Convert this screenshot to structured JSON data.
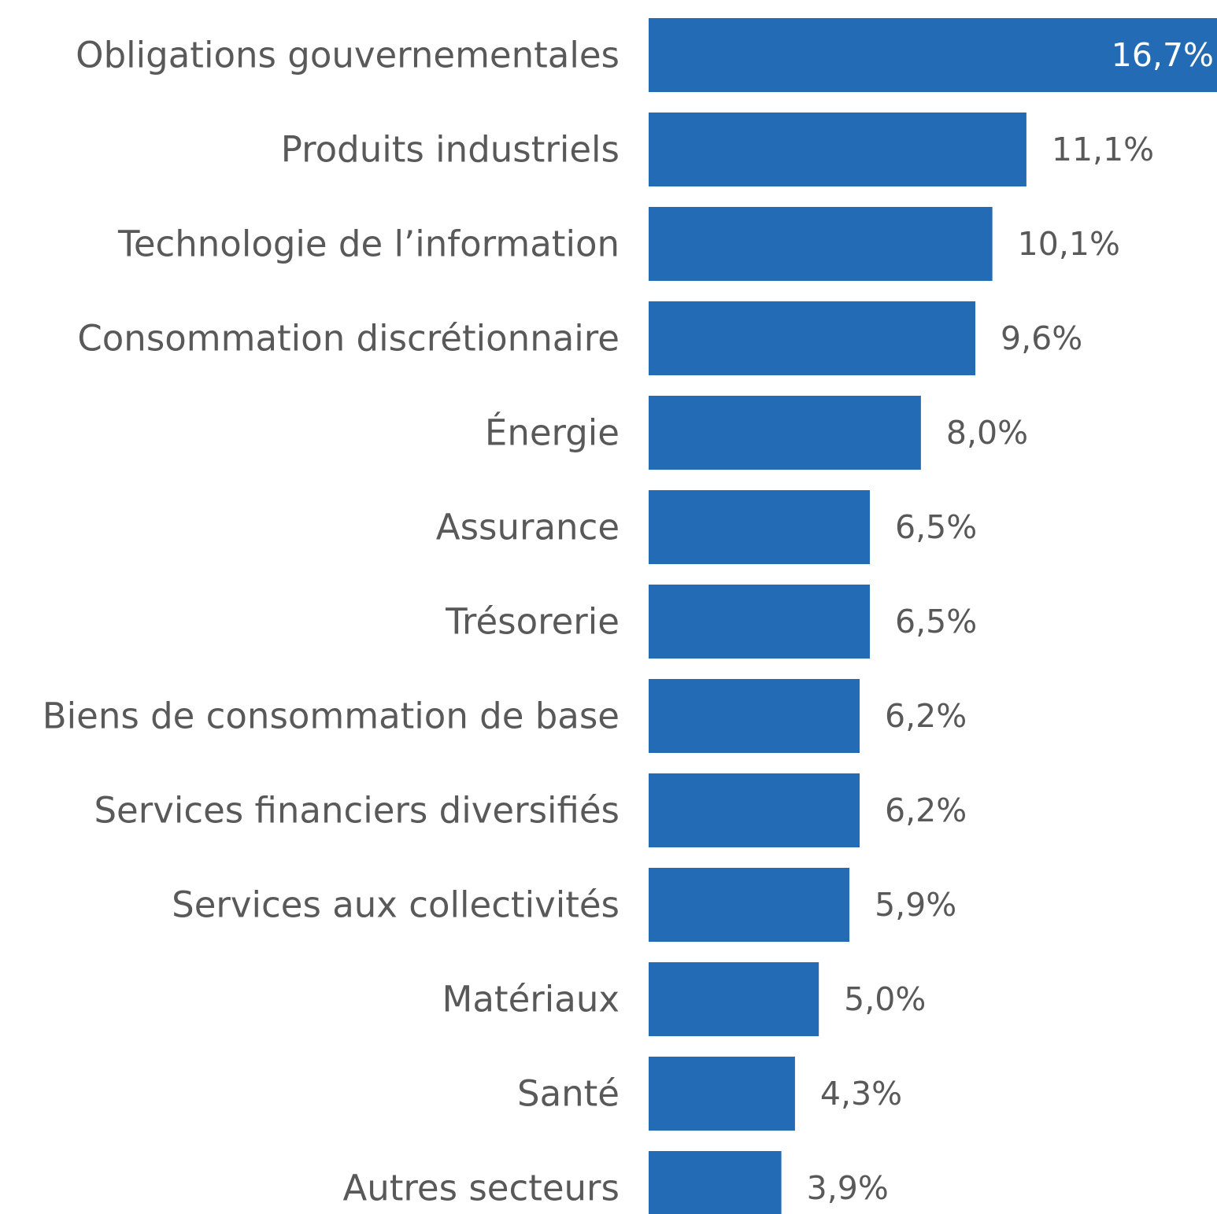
{
  "chart_data": {
    "type": "bar",
    "orientation": "horizontal",
    "categories": [
      "Obligations gouvernementales",
      "Produits industriels",
      "Technologie de l’information",
      "Consommation discrétionnaire",
      "Énergie",
      "Assurance",
      "Trésorerie",
      "Biens de consommation de base",
      "Services financiers diversifiés",
      "Services aux collectivités",
      "Matériaux",
      "Santé",
      "Autres secteurs"
    ],
    "values": [
      16.7,
      11.1,
      10.1,
      9.6,
      8.0,
      6.5,
      6.5,
      6.2,
      6.2,
      5.9,
      5.0,
      4.3,
      3.9
    ],
    "value_labels": [
      "16,7%",
      "11,1%",
      "10,1%",
      "9,6%",
      "8,0%",
      "6,5%",
      "6,5%",
      "6,2%",
      "6,2%",
      "5,9%",
      "5,0%",
      "4,3%",
      "3,9%"
    ],
    "title": "",
    "xlabel": "",
    "ylabel": "",
    "xlim": [
      0,
      16.7
    ],
    "grid": false,
    "legend": "none",
    "colors": {
      "bar": "#236CB5",
      "label_text": "#595959",
      "inside_label_text": "#ffffff"
    }
  }
}
